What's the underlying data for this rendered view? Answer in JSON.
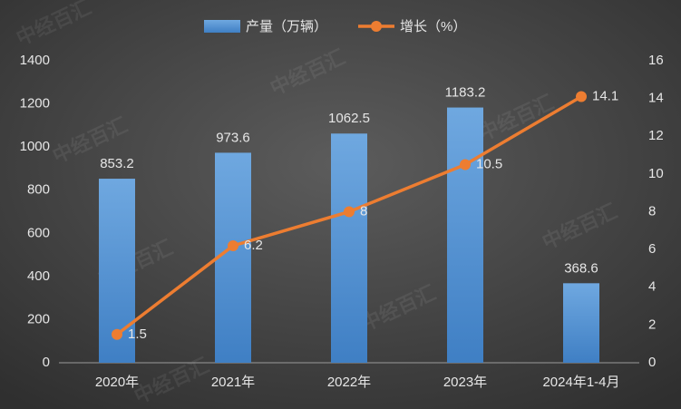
{
  "chart_data": {
    "type": "bar",
    "watermark": "中经百汇",
    "categories": [
      "2020年",
      "2021年",
      "2022年",
      "2023年",
      "2024年1-4月"
    ],
    "series": [
      {
        "name": "产量（万辆）",
        "type": "bar",
        "color": "#5b9bd5",
        "values": [
          853.2,
          973.6,
          1062.5,
          1183.2,
          368.6
        ]
      },
      {
        "name": "增长（%）",
        "type": "line",
        "color": "#ed7d31",
        "axis": "y2",
        "values": [
          1.5,
          6.2,
          8,
          10.5,
          14.1
        ]
      }
    ],
    "ylim": [
      0,
      1400
    ],
    "yticks": [
      0,
      200,
      400,
      600,
      800,
      1000,
      1200,
      1400
    ],
    "y2lim": [
      0,
      16
    ],
    "y2ticks": [
      0,
      2,
      4,
      6,
      8,
      10,
      12,
      14,
      16
    ],
    "grid": false
  }
}
